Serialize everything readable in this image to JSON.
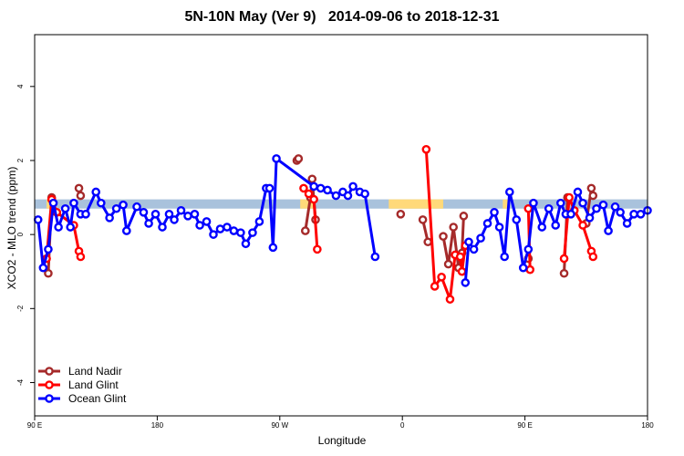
{
  "chart_data": {
    "type": "line",
    "title": "5N-10N May (Ver 9)   2014-09-06 to 2018-12-31",
    "xlabel": "Longitude",
    "ylabel": "XCO2 - MLO trend (ppm)",
    "xlim": [
      90,
      450
    ],
    "ylim": [
      -4.9,
      5.4
    ],
    "x_ticks": [
      {
        "value": 90,
        "label": "90 E"
      },
      {
        "value": 162,
        "label": "180"
      },
      {
        "value": 234,
        "label": "90 W"
      },
      {
        "value": 306,
        "label": "0"
      },
      {
        "value": 378,
        "label": "90 E"
      },
      {
        "value": 450,
        "label": "180"
      }
    ],
    "y_ticks": [
      -4,
      -2,
      0,
      2,
      4
    ],
    "grid": false,
    "legend_position": "bottom-left",
    "band": {
      "y_range": [
        0.7,
        0.95
      ],
      "base_color": "#a9c2dc",
      "highlight_color": "#ffd97a",
      "highlight_x_ranges": [
        [
          97,
          99
        ],
        [
          246,
          255
        ],
        [
          298,
          330
        ],
        [
          365,
          368
        ],
        [
          381,
          384
        ]
      ]
    },
    "series": [
      {
        "name": "Land Nadir",
        "color": "#a52a2a",
        "segments": [
          [
            [
              98,
              -1.05
            ],
            [
              100,
              1.0
            ]
          ],
          [
            [
              116,
              1.25
            ],
            [
              117,
              1.05
            ]
          ],
          [
            [
              244,
              2.0
            ],
            [
              245,
              2.05
            ]
          ],
          [
            [
              249,
              0.1
            ],
            [
              252,
              1.0
            ],
            [
              253,
              1.5
            ],
            [
              255,
              0.4
            ]
          ],
          [
            [
              305,
              0.55
            ]
          ],
          [
            [
              318,
              0.4
            ],
            [
              321,
              -0.2
            ]
          ],
          [
            [
              330,
              -0.05
            ],
            [
              333,
              -0.8
            ],
            [
              336,
              0.2
            ],
            [
              339,
              -0.9
            ],
            [
              341,
              -0.5
            ],
            [
              342,
              0.5
            ]
          ],
          [
            [
              380,
              -0.65
            ]
          ],
          [
            [
              401,
              -1.05
            ],
            [
              403,
              1.0
            ]
          ],
          [
            [
              414,
              0.3
            ],
            [
              417,
              1.25
            ],
            [
              418,
              1.05
            ]
          ]
        ]
      },
      {
        "name": "Land Glint",
        "color": "#ff0000",
        "segments": [
          [
            [
              97,
              -0.65
            ],
            [
              100,
              0.95
            ],
            [
              103,
              0.6
            ],
            [
              113,
              0.25
            ],
            [
              116,
              -0.45
            ],
            [
              117,
              -0.6
            ]
          ],
          [
            [
              248,
              1.25
            ],
            [
              251,
              1.1
            ],
            [
              254,
              0.95
            ],
            [
              256,
              -0.4
            ]
          ],
          [
            [
              320,
              2.3
            ],
            [
              325,
              -1.4
            ],
            [
              329,
              -1.15
            ],
            [
              334,
              -1.75
            ],
            [
              337,
              -0.55
            ],
            [
              340,
              -0.6
            ],
            [
              341,
              -1.0
            ],
            [
              343,
              -0.3
            ]
          ],
          [
            [
              380,
              0.7
            ],
            [
              381,
              -0.95
            ]
          ],
          [
            [
              401,
              -0.65
            ],
            [
              404,
              1.0
            ],
            [
              407,
              0.65
            ],
            [
              412,
              0.25
            ],
            [
              417,
              -0.45
            ],
            [
              418,
              -0.6
            ]
          ]
        ]
      },
      {
        "name": "Ocean Glint",
        "color": "#0000ff",
        "segments": [
          [
            [
              92,
              0.4
            ],
            [
              95,
              -0.9
            ],
            [
              98,
              -0.4
            ],
            [
              101,
              0.85
            ],
            [
              104,
              0.2
            ],
            [
              108,
              0.7
            ],
            [
              111,
              0.2
            ],
            [
              113,
              0.85
            ],
            [
              117,
              0.55
            ],
            [
              120,
              0.55
            ],
            [
              126,
              1.15
            ],
            [
              129,
              0.85
            ],
            [
              134,
              0.45
            ],
            [
              138,
              0.7
            ],
            [
              142,
              0.8
            ],
            [
              144,
              0.1
            ],
            [
              150,
              0.75
            ],
            [
              154,
              0.6
            ],
            [
              157,
              0.3
            ],
            [
              161,
              0.55
            ],
            [
              165,
              0.2
            ],
            [
              169,
              0.55
            ],
            [
              172,
              0.4
            ],
            [
              176,
              0.65
            ],
            [
              180,
              0.5
            ],
            [
              184,
              0.55
            ],
            [
              187,
              0.25
            ],
            [
              191,
              0.35
            ],
            [
              195,
              0.0
            ],
            [
              199,
              0.15
            ],
            [
              203,
              0.2
            ],
            [
              207,
              0.1
            ],
            [
              211,
              0.05
            ],
            [
              214,
              -0.25
            ],
            [
              218,
              0.05
            ],
            [
              222,
              0.35
            ],
            [
              226,
              1.25
            ],
            [
              228,
              1.25
            ],
            [
              230,
              -0.35
            ],
            [
              232,
              2.05
            ],
            [
              254,
              1.3
            ],
            [
              258,
              1.25
            ],
            [
              262,
              1.2
            ],
            [
              267,
              1.05
            ],
            [
              271,
              1.15
            ],
            [
              274,
              1.05
            ],
            [
              277,
              1.3
            ],
            [
              281,
              1.15
            ],
            [
              284,
              1.1
            ],
            [
              290,
              -0.6
            ]
          ],
          [
            [
              343,
              -1.3
            ],
            [
              345,
              -0.2
            ],
            [
              348,
              -0.4
            ],
            [
              352,
              -0.1
            ],
            [
              356,
              0.3
            ],
            [
              360,
              0.6
            ],
            [
              363,
              0.2
            ],
            [
              366,
              -0.6
            ],
            [
              369,
              1.15
            ],
            [
              373,
              0.4
            ],
            [
              377,
              -0.9
            ],
            [
              380,
              -0.4
            ],
            [
              383,
              0.85
            ],
            [
              388,
              0.2
            ],
            [
              392,
              0.7
            ],
            [
              396,
              0.25
            ],
            [
              399,
              0.85
            ],
            [
              402,
              0.55
            ],
            [
              405,
              0.55
            ],
            [
              409,
              1.15
            ],
            [
              412,
              0.85
            ],
            [
              416,
              0.45
            ],
            [
              420,
              0.7
            ],
            [
              424,
              0.8
            ],
            [
              427,
              0.1
            ],
            [
              431,
              0.75
            ],
            [
              434,
              0.6
            ],
            [
              438,
              0.3
            ],
            [
              442,
              0.55
            ],
            [
              446,
              0.55
            ],
            [
              450,
              0.65
            ]
          ]
        ]
      }
    ]
  }
}
